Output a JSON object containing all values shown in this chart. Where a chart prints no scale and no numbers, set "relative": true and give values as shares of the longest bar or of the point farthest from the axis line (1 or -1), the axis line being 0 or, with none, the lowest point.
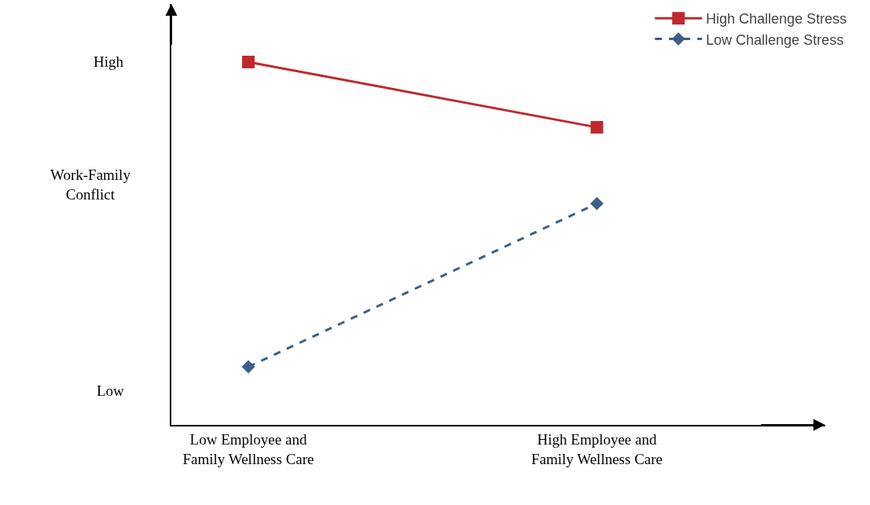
{
  "chart_data": {
    "type": "line",
    "relative": true,
    "ylabel": "Work-Family Conflict",
    "categories": [
      "Low Employee and Family Wellness Care",
      "High Employee and Family Wellness Care"
    ],
    "series": [
      {
        "name": "High Challenge Stress",
        "color": "#c0282d",
        "values": [
          1,
          0.82
        ],
        "marker": "square",
        "line_style": "solid"
      },
      {
        "name": "Low Challenge Stress",
        "color": "#3b5f8a",
        "values": [
          0.16,
          0.61
        ],
        "marker": "diamond",
        "line_style": "dashed"
      }
    ],
    "annotations": [
      "High",
      "Low"
    ],
    "legend": "top right"
  }
}
